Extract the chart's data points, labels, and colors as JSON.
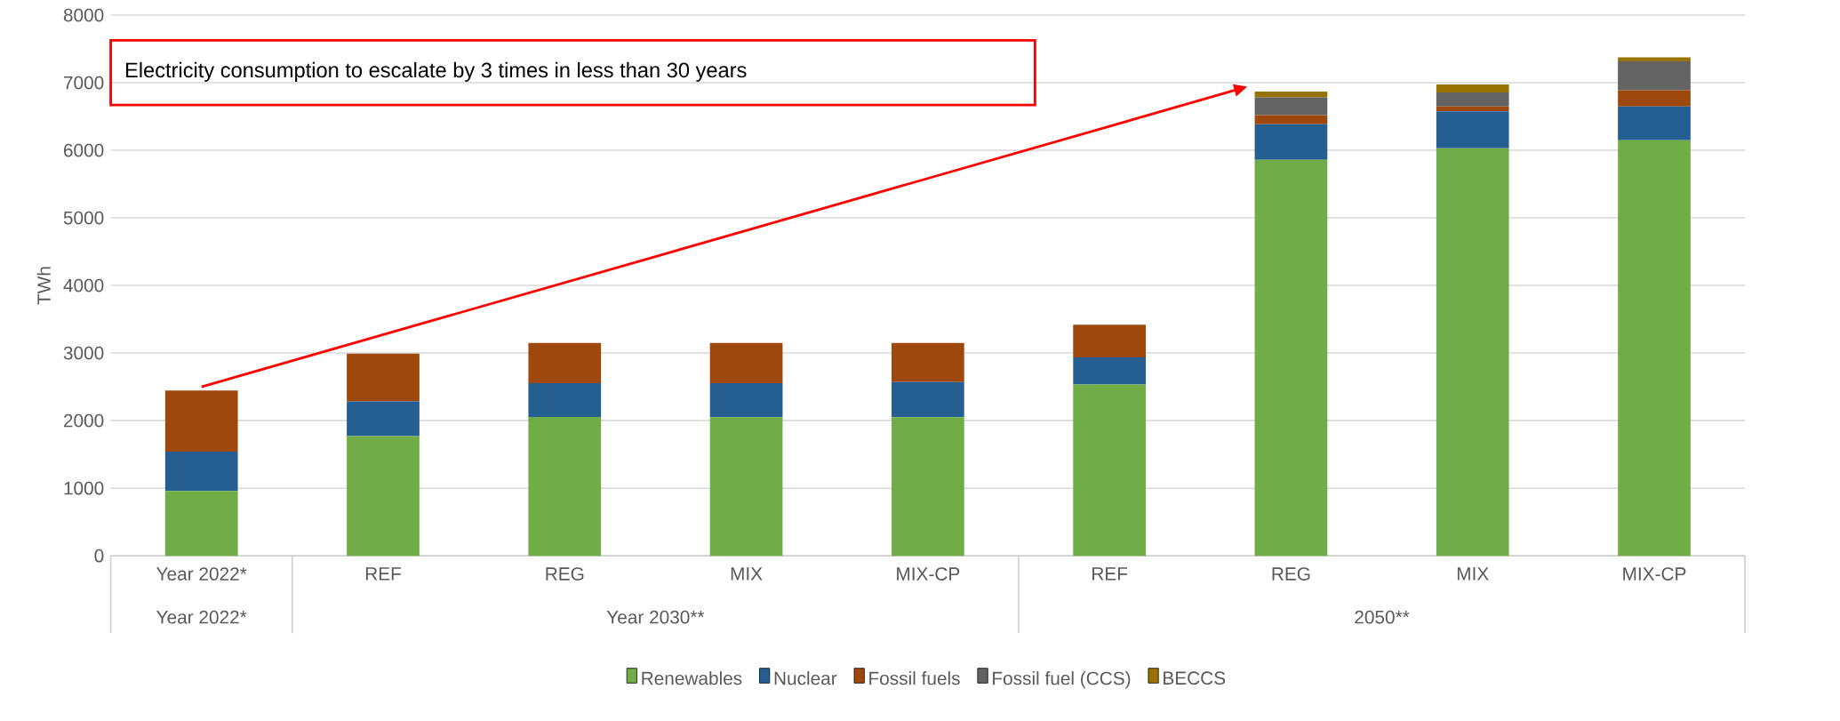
{
  "chart_data": {
    "type": "bar",
    "stacked": true,
    "ylabel": "TWh",
    "categories": [
      "Year 2022*",
      "REF",
      "REG",
      "MIX",
      "MIX-CP",
      "REF",
      "REG",
      "MIX",
      "MIX-CP"
    ],
    "series": [
      {
        "name": "Renewables",
        "color": "#70ad47",
        "values": [
          960,
          1770,
          2055,
          2050,
          2050,
          2535,
          5860,
          6030,
          6150
        ]
      },
      {
        "name": "Nuclear",
        "color": "#255e91",
        "values": [
          580,
          515,
          500,
          505,
          520,
          400,
          525,
          545,
          500
        ]
      },
      {
        "name": "Fossil fuels",
        "color": "#9e480e",
        "values": [
          905,
          705,
          595,
          595,
          580,
          485,
          135,
          75,
          240
        ]
      },
      {
        "name": "Fossil fuel (CCS)",
        "color": "#636363",
        "values": [
          0,
          0,
          0,
          0,
          0,
          0,
          265,
          205,
          425
        ]
      },
      {
        "name": "BECCS",
        "color": "#997300",
        "values": [
          0,
          0,
          0,
          0,
          0,
          0,
          85,
          120,
          60
        ]
      }
    ],
    "ylim": [
      0,
      8000
    ],
    "yticks": [
      0,
      1000,
      2000,
      3000,
      4000,
      5000,
      6000,
      7000,
      8000
    ],
    "grid": "y",
    "legend": "bottom",
    "annotations": [
      "Electricity consumption to escalate by 3 times in less than 30 years",
      "Year 2022*",
      "Year 2030**",
      "2050**"
    ]
  }
}
